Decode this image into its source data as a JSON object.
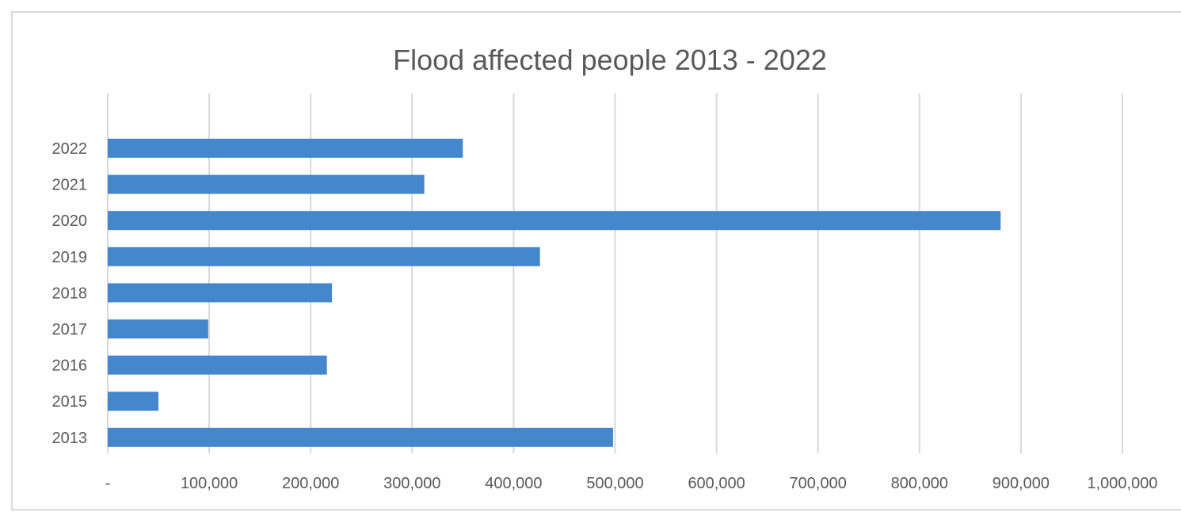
{
  "chart_data": {
    "type": "bar",
    "orientation": "horizontal",
    "title": "Flood affected people 2013 - 2022",
    "xlabel": "",
    "ylabel": "",
    "categories": [
      "2022",
      "2021",
      "2020",
      "2019",
      "2018",
      "2017",
      "2016",
      "2015",
      "2013"
    ],
    "values": [
      350000,
      312000,
      880000,
      426000,
      221000,
      99000,
      216000,
      50000,
      498000
    ],
    "xlim": [
      0,
      1000000
    ],
    "x_tick_labels": [
      "-",
      "100,000",
      "200,000",
      "300,000",
      "400,000",
      "500,000",
      "600,000",
      "700,000",
      "800,000",
      "900,000",
      "1,000,000"
    ],
    "x_ticks": [
      0,
      100000,
      200000,
      300000,
      400000,
      500000,
      600000,
      700000,
      800000,
      900000,
      1000000
    ],
    "grid": "vertical",
    "legend": "none",
    "colors": {
      "bar": "#4487cc",
      "grid": "#d9d9d9",
      "text": "#595959"
    }
  }
}
